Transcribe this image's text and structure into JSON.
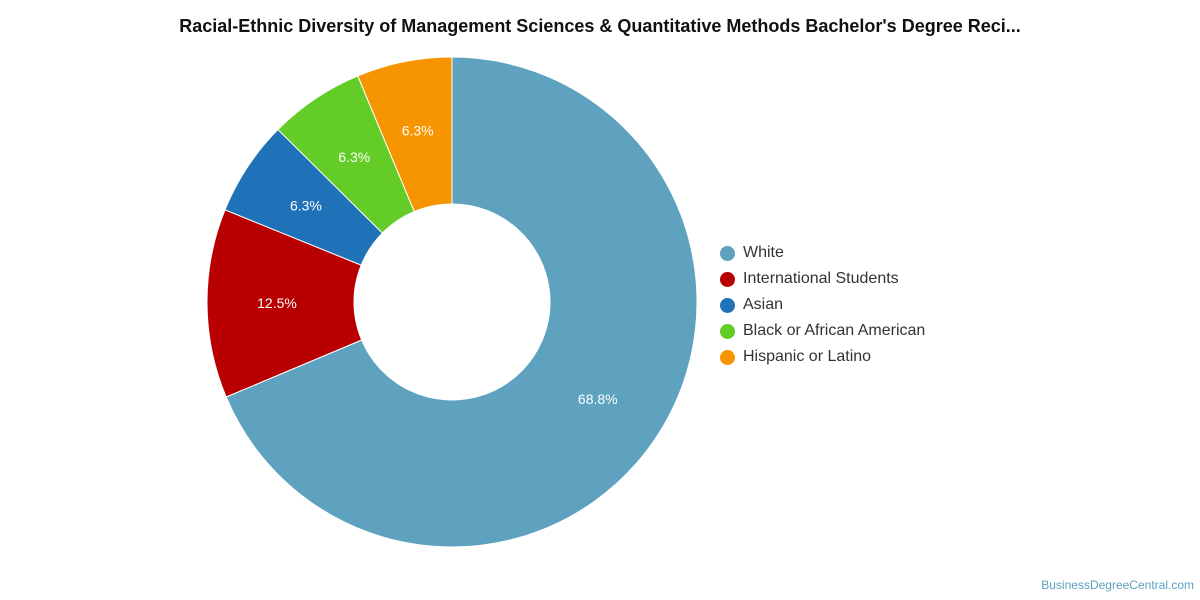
{
  "title": "Racial-Ethnic Diversity of Management Sciences & Quantitative Methods Bachelor's Degree Reci...",
  "credit": "BusinessDegreeCentral.com",
  "chart_data": {
    "type": "pie",
    "variant": "donut",
    "title": "Racial-Ethnic Diversity of Management Sciences & Quantitative Methods Bachelor's Degree Reci...",
    "legend_position": "right",
    "categories": [
      "White",
      "International Students",
      "Asian",
      "Black or African American",
      "Hispanic or Latino"
    ],
    "values": [
      68.8,
      12.5,
      6.3,
      6.3,
      6.3
    ],
    "labels": [
      "68.8%",
      "12.5%",
      "6.3%",
      "6.3%",
      "6.3%"
    ],
    "colors": [
      "#5ea2bf",
      "#b80000",
      "#1f72b8",
      "#63cc27",
      "#f79500"
    ]
  }
}
